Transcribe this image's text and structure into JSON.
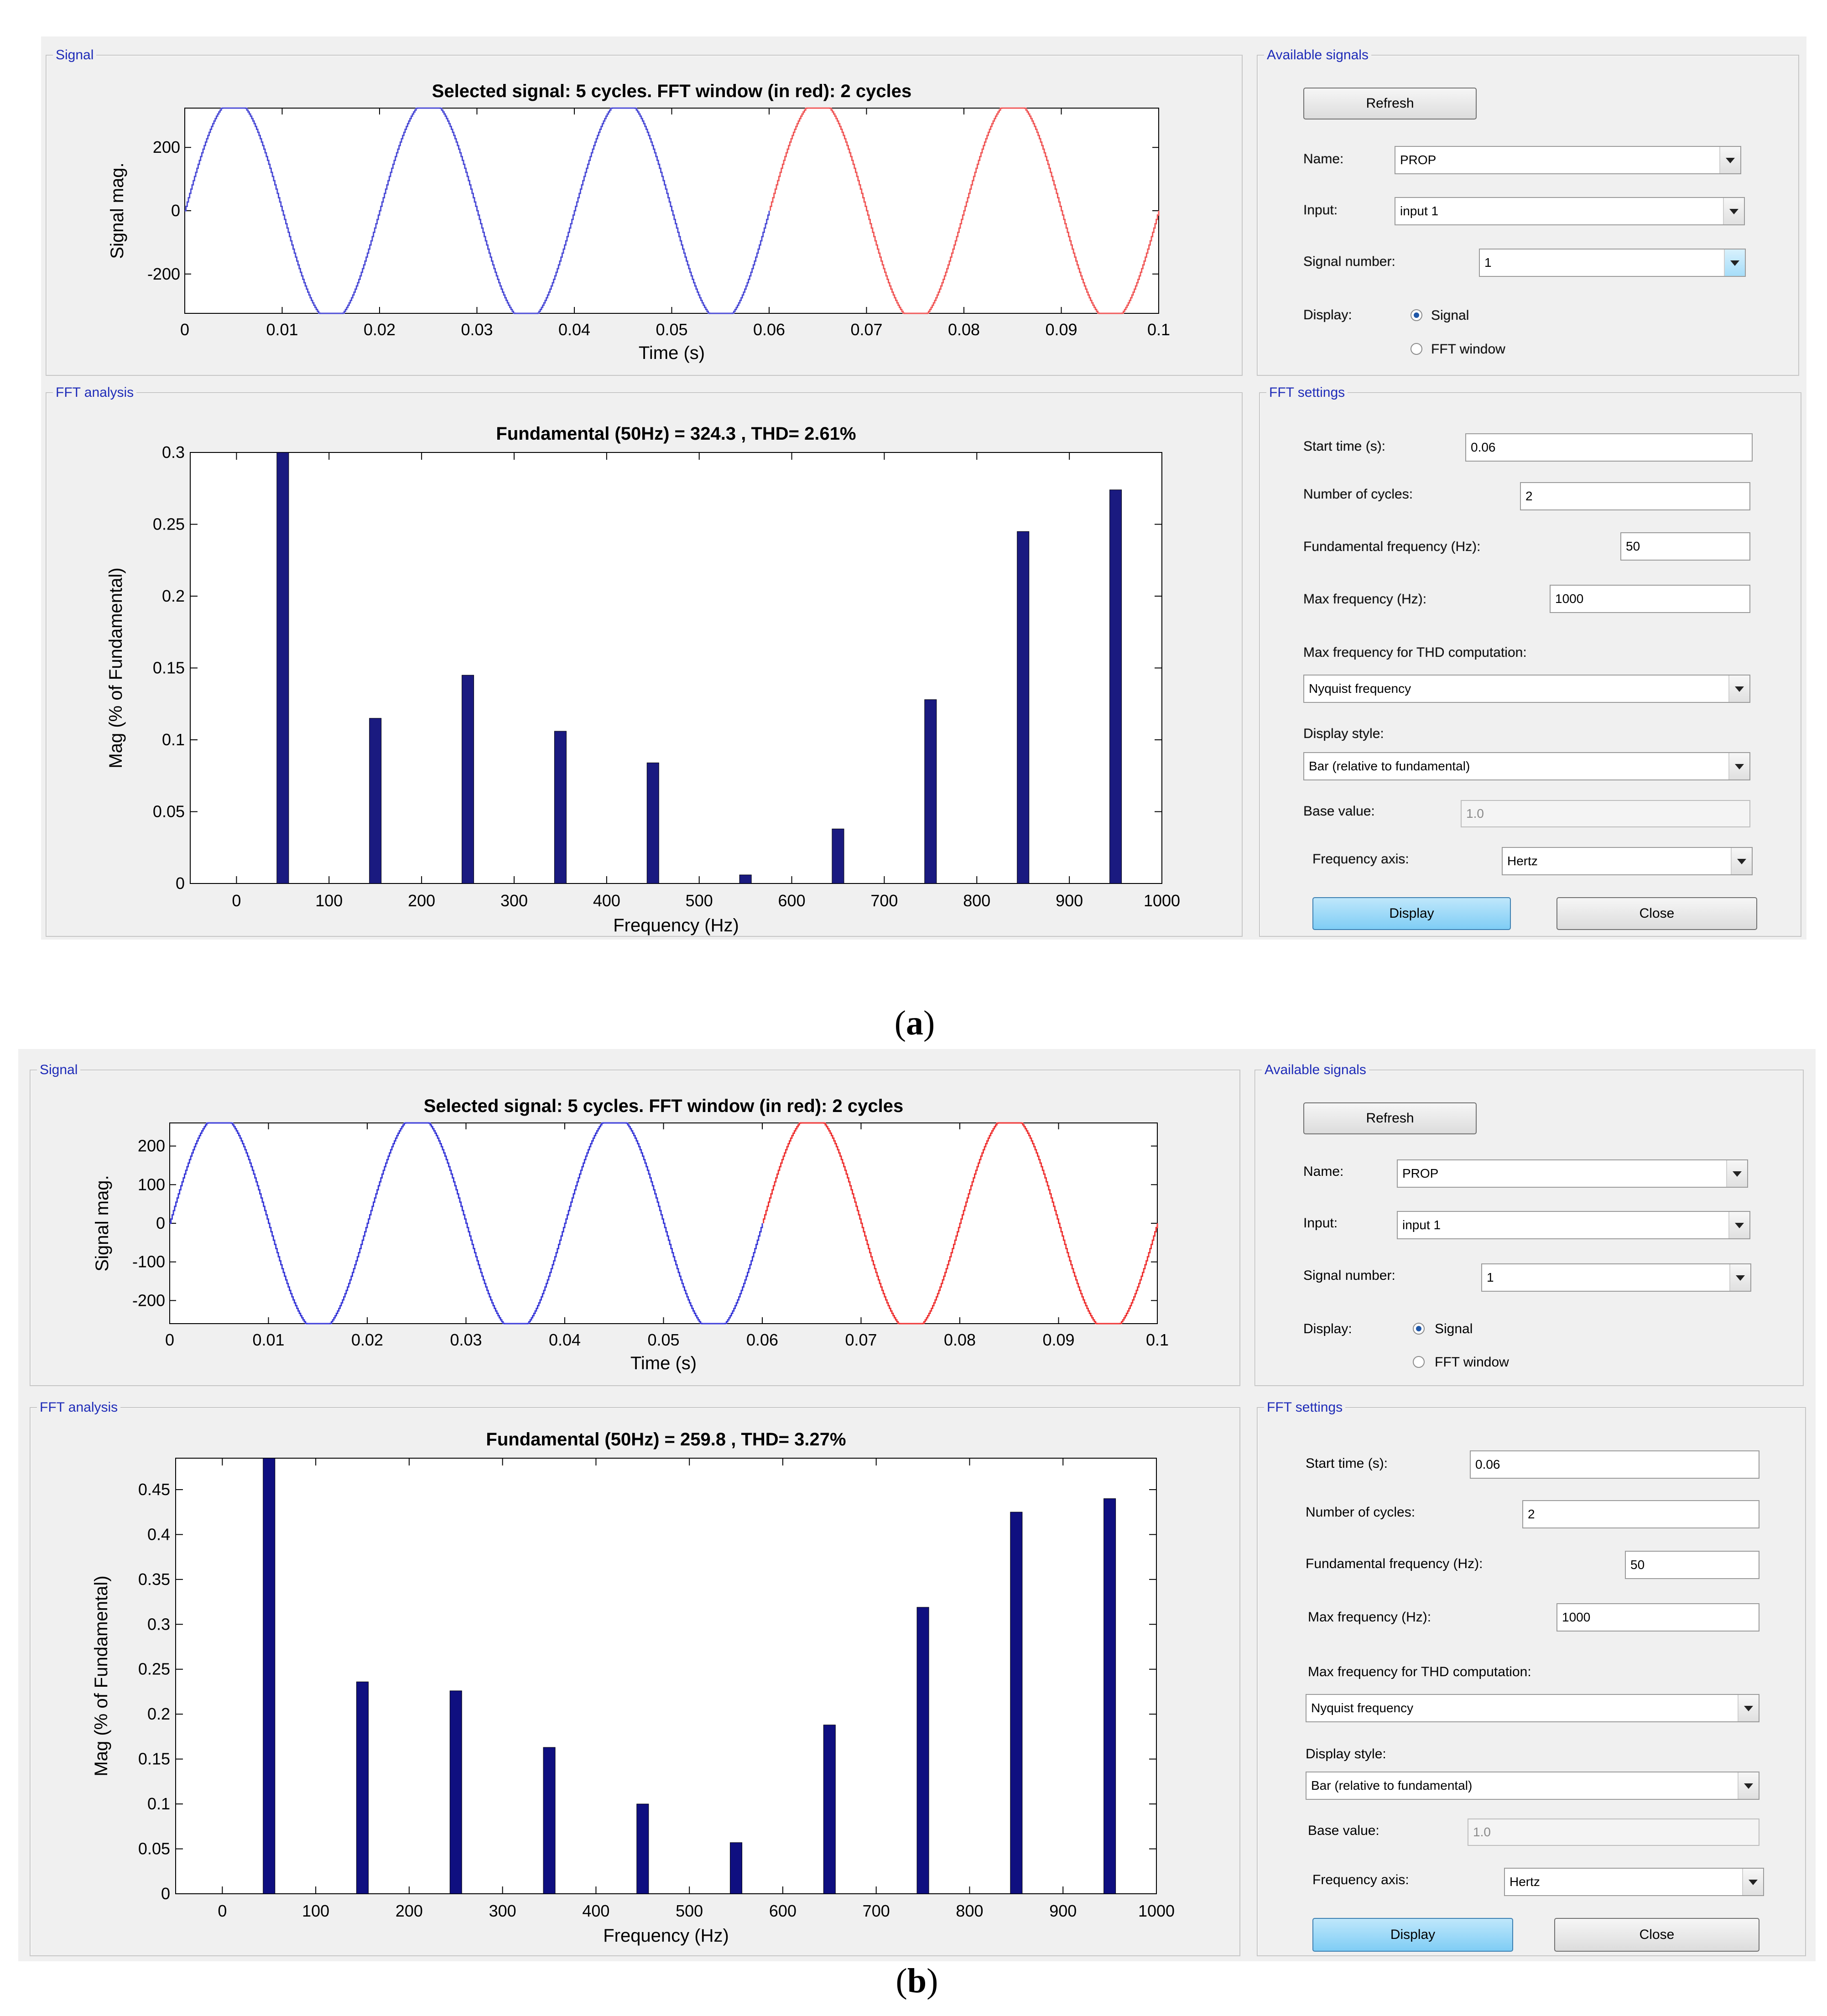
{
  "panels": [
    {
      "caption": "(a)",
      "caption_letter": "a",
      "signal_group_label": "Signal",
      "fft_group_label": "FFT analysis",
      "available_group_label": "Available signals",
      "settings_group_label": "FFT settings",
      "signal_chart": {
        "title": "Selected signal: 5 cycles. FFT window (in red): 2 cycles",
        "xlabel": "Time (s)",
        "ylabel": "Signal mag.",
        "xticks": [
          "0",
          "0.01",
          "0.02",
          "0.03",
          "0.04",
          "0.05",
          "0.06",
          "0.07",
          "0.08",
          "0.09",
          "0.1"
        ],
        "yticks": [
          "-200",
          "0",
          "200"
        ],
        "ytick_values": [
          -200,
          0,
          200
        ],
        "ylim": [
          -324.3,
          324.3
        ],
        "amplitude": 324.3,
        "xlim": [
          0,
          0.1
        ],
        "red_start": 0.06,
        "colors": {
          "signal": "#4d4dd6",
          "fft_window": "#f05a5a"
        }
      },
      "fft_chart": {
        "type": "bar",
        "title": "Fundamental (50Hz) = 324.3 , THD= 2.61%",
        "xlabel": "Frequency (Hz)",
        "ylabel": "Mag (% of Fundamental)",
        "xticks": [
          "0",
          "100",
          "200",
          "300",
          "400",
          "500",
          "600",
          "700",
          "800",
          "900",
          "1000"
        ],
        "yticks": [
          "0",
          "0.05",
          "0.1",
          "0.15",
          "0.2",
          "0.25",
          "0.3"
        ],
        "ytick_values": [
          0,
          0.05,
          0.1,
          0.15,
          0.2,
          0.25,
          0.3
        ],
        "ylim": [
          0,
          0.3
        ],
        "xlim": [
          -50,
          1000
        ],
        "x": [
          50,
          150,
          250,
          350,
          450,
          550,
          650,
          750,
          850,
          950
        ],
        "values": [
          0.31,
          0.115,
          0.145,
          0.106,
          0.084,
          0.006,
          0.038,
          0.128,
          0.245,
          0.274
        ],
        "color": "#1a1a80"
      },
      "available": {
        "refresh": "Refresh",
        "name_label": "Name:",
        "name_value": "PROP",
        "input_label": "Input:",
        "input_value": "input 1",
        "signal_number_label": "Signal number:",
        "signal_number_value": "1",
        "display_label": "Display:",
        "radio_signal": "Signal",
        "radio_fft": "FFT window"
      },
      "settings": {
        "start_time_label": "Start time (s):",
        "start_time_value": "0.06",
        "cycles_label": "Number of cycles:",
        "cycles_value": "2",
        "fund_label": "Fundamental frequency (Hz):",
        "fund_value": "50",
        "maxf_label": "Max frequency (Hz):",
        "maxf_value": "1000",
        "thd_label": "Max frequency for THD computation:",
        "thd_value": "Nyquist frequency",
        "style_label": "Display style:",
        "style_value": "Bar (relative to fundamental)",
        "base_label": "Base value:",
        "base_value": "1.0",
        "faxis_label": "Frequency axis:",
        "faxis_value": "Hertz",
        "display_btn": "Display",
        "close_btn": "Close"
      }
    },
    {
      "caption": "(b)",
      "caption_letter": "b",
      "signal_group_label": "Signal",
      "fft_group_label": "FFT analysis",
      "available_group_label": "Available signals",
      "settings_group_label": "FFT settings",
      "signal_chart": {
        "title": "Selected signal: 5 cycles. FFT window (in red): 2 cycles",
        "xlabel": "Time (s)",
        "ylabel": "Signal mag.",
        "xticks": [
          "0",
          "0.01",
          "0.02",
          "0.03",
          "0.04",
          "0.05",
          "0.06",
          "0.07",
          "0.08",
          "0.09",
          "0.1"
        ],
        "yticks": [
          "-200",
          "-100",
          "0",
          "100",
          "200"
        ],
        "ytick_values": [
          -200,
          -100,
          0,
          100,
          200
        ],
        "ylim": [
          -259.8,
          259.8
        ],
        "amplitude": 259.8,
        "xlim": [
          0,
          0.1
        ],
        "red_start": 0.06,
        "colors": {
          "signal": "#3b3bd8",
          "fft_window": "#ee3535"
        }
      },
      "fft_chart": {
        "type": "bar",
        "title": "Fundamental (50Hz) = 259.8 , THD= 3.27%",
        "xlabel": "Frequency (Hz)",
        "ylabel": "Mag (% of Fundamental)",
        "xticks": [
          "0",
          "100",
          "200",
          "300",
          "400",
          "500",
          "600",
          "700",
          "800",
          "900",
          "1000"
        ],
        "yticks": [
          "0",
          "0.05",
          "0.1",
          "0.15",
          "0.2",
          "0.25",
          "0.3",
          "0.35",
          "0.4",
          "0.45"
        ],
        "ytick_values": [
          0,
          0.05,
          0.1,
          0.15,
          0.2,
          0.25,
          0.3,
          0.35,
          0.4,
          0.45
        ],
        "ylim": [
          0,
          0.485
        ],
        "xlim": [
          -50,
          1000
        ],
        "x": [
          50,
          150,
          250,
          350,
          450,
          550,
          650,
          750,
          850,
          950
        ],
        "values": [
          0.49,
          0.236,
          0.226,
          0.163,
          0.1,
          0.057,
          0.188,
          0.319,
          0.425,
          0.44
        ],
        "color": "#0f0f80"
      },
      "available": {
        "refresh": "Refresh",
        "name_label": "Name:",
        "name_value": "PROP",
        "input_label": "Input:",
        "input_value": "input 1",
        "signal_number_label": "Signal number:",
        "signal_number_value": "1",
        "display_label": "Display:",
        "radio_signal": "Signal",
        "radio_fft": "FFT window"
      },
      "settings": {
        "start_time_label": "Start time (s):",
        "start_time_value": "0.06",
        "cycles_label": "Number of cycles:",
        "cycles_value": "2",
        "fund_label": "Fundamental frequency (Hz):",
        "fund_value": "50",
        "maxf_label": "Max frequency (Hz):",
        "maxf_value": "1000",
        "thd_label": "Max frequency for THD computation:",
        "thd_value": "Nyquist frequency",
        "style_label": "Display style:",
        "style_value": "Bar (relative to fundamental)",
        "base_label": "Base value:",
        "base_value": "1.0",
        "faxis_label": "Frequency axis:",
        "faxis_value": "Hertz",
        "display_btn": "Display",
        "close_btn": "Close"
      }
    }
  ]
}
